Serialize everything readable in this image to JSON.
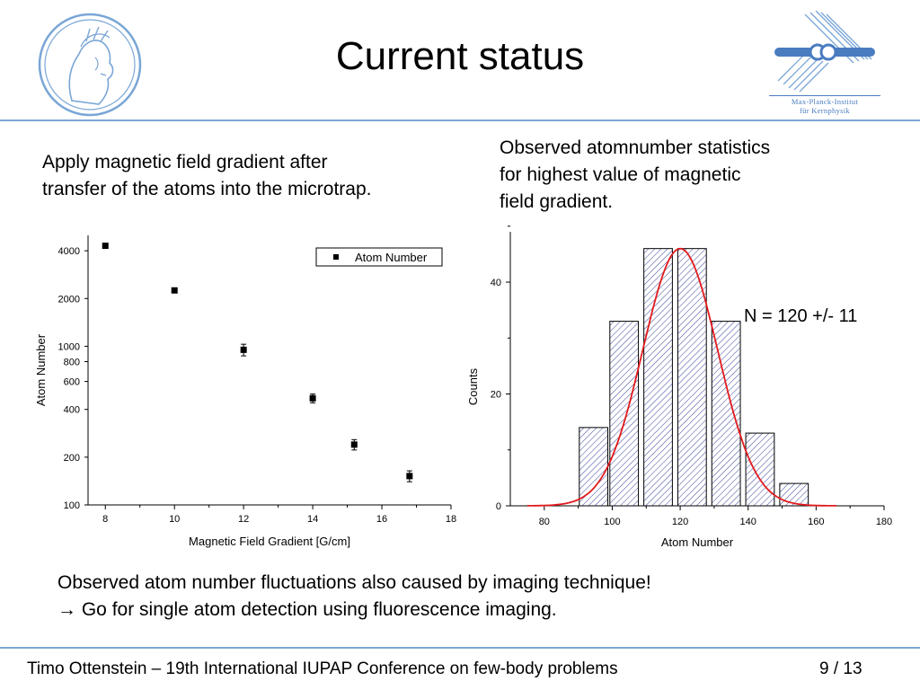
{
  "slide": {
    "title": "Current status",
    "left_text": [
      "Apply magnetic field gradient after",
      "transfer of the atoms into the microtrap."
    ],
    "right_text": [
      "Observed atomnumber statistics",
      "for highest value of magnetic",
      "field gradient."
    ],
    "bottom_text": [
      "Observed atom number fluctuations also caused by imaging technique!",
      "Go for single atom detection using fluorescence imaging."
    ],
    "footer": "Timo Ottenstein –  19th International IUPAP Conference on few-body problems",
    "page": "9 / 13",
    "institute_label": [
      "Max-Planck-Institut",
      "für Kernphysik"
    ],
    "colors": {
      "rule": "#7aa6d6",
      "logo": "#4a7cc0",
      "fit": "#e31a1c",
      "hatch": "#1f2f8f"
    },
    "icons": {
      "left_logo": "minerva-logo-icon",
      "right_logo": "mpi-k-logo-icon",
      "arrow": "right-arrow-icon"
    }
  },
  "chart_data": [
    {
      "type": "scatter",
      "xlabel": "Magnetic Field Gradient [G/cm]",
      "ylabel": "Atom Number",
      "xlim": [
        7.5,
        18
      ],
      "ylim": [
        100,
        5000
      ],
      "yscale": "log",
      "xticks": [
        8,
        10,
        12,
        14,
        16,
        18
      ],
      "yticks": [
        100,
        200,
        400,
        600,
        800,
        1000,
        2000,
        4000
      ],
      "legend": "Atom Number",
      "legend_position": "top-right",
      "series": [
        {
          "name": "Atom Number",
          "points": [
            {
              "x": 8.0,
              "y": 4300,
              "err": 0
            },
            {
              "x": 10.0,
              "y": 2250,
              "err": 0
            },
            {
              "x": 12.0,
              "y": 950,
              "err": 80
            },
            {
              "x": 14.0,
              "y": 470,
              "err": 30
            },
            {
              "x": 15.2,
              "y": 240,
              "err": 18
            },
            {
              "x": 16.8,
              "y": 152,
              "err": 12
            }
          ]
        }
      ]
    },
    {
      "type": "bar",
      "xlabel": "Atom Number",
      "ylabel": "Counts",
      "xlim": [
        70,
        180
      ],
      "ylim": [
        0,
        49
      ],
      "xticks": [
        80,
        100,
        120,
        140,
        160,
        180
      ],
      "yticks": [
        0,
        20,
        40
      ],
      "bins": [
        {
          "x0": 92,
          "x1": 97,
          "count": 14
        },
        {
          "x0": 101,
          "x1": 106,
          "count": 33
        },
        {
          "x0": 111,
          "x1": 116,
          "count": 46
        },
        {
          "x0": 121,
          "x1": 126,
          "count": 46
        },
        {
          "x0": 131,
          "x1": 136,
          "count": 33
        },
        {
          "x0": 141,
          "x1": 146,
          "count": 13
        },
        {
          "x0": 151,
          "x1": 156,
          "count": 4
        }
      ],
      "fit": {
        "type": "gaussian",
        "mean": 120,
        "sigma": 11,
        "amplitude": 46,
        "xrange": [
          75,
          166
        ]
      },
      "annotation": "N = 120 +/- 11"
    }
  ]
}
